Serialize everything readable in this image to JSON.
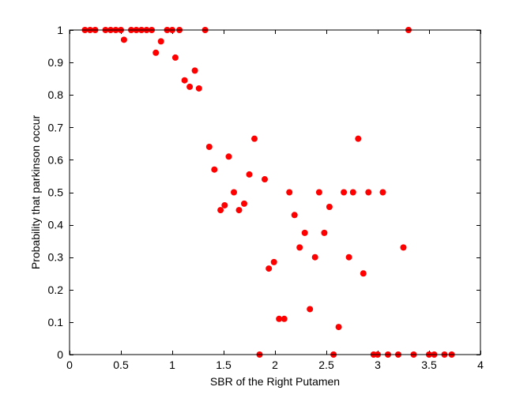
{
  "chart_data": {
    "type": "scatter",
    "xlabel": "SBR of the Right Putamen",
    "ylabel": "Probability that parkinson occur",
    "xlim": [
      0,
      4
    ],
    "ylim": [
      0,
      1
    ],
    "x_ticks": [
      0,
      0.5,
      1,
      1.5,
      2,
      2.5,
      3,
      3.5,
      4
    ],
    "x_tick_labels": [
      "0",
      "0.5",
      "1",
      "1.5",
      "2",
      "2.5",
      "3",
      "3.5",
      "4"
    ],
    "y_ticks": [
      0,
      0.1,
      0.2,
      0.3,
      0.4,
      0.5,
      0.6,
      0.7,
      0.8,
      0.9,
      1
    ],
    "y_tick_labels": [
      "0",
      "0.1",
      "0.2",
      "0.3",
      "0.4",
      "0.5",
      "0.6",
      "0.7",
      "0.8",
      "0.9",
      "1"
    ],
    "grid": false,
    "marker_color": "#ff0000",
    "points": [
      [
        0.15,
        1
      ],
      [
        0.2,
        1
      ],
      [
        0.25,
        1
      ],
      [
        0.35,
        1
      ],
      [
        0.4,
        1
      ],
      [
        0.45,
        1
      ],
      [
        0.5,
        1
      ],
      [
        0.6,
        1
      ],
      [
        0.65,
        1
      ],
      [
        0.7,
        1
      ],
      [
        0.75,
        1
      ],
      [
        0.8,
        1
      ],
      [
        0.95,
        1
      ],
      [
        1.0,
        1
      ],
      [
        1.07,
        1
      ],
      [
        1.32,
        1
      ],
      [
        3.3,
        1
      ],
      [
        0.53,
        0.97
      ],
      [
        0.89,
        0.965
      ],
      [
        0.84,
        0.93
      ],
      [
        1.03,
        0.915
      ],
      [
        1.12,
        0.845
      ],
      [
        1.22,
        0.875
      ],
      [
        1.17,
        0.825
      ],
      [
        1.26,
        0.82
      ],
      [
        1.36,
        0.64
      ],
      [
        1.41,
        0.57
      ],
      [
        1.47,
        0.445
      ],
      [
        1.51,
        0.46
      ],
      [
        1.55,
        0.61
      ],
      [
        1.6,
        0.5
      ],
      [
        1.65,
        0.445
      ],
      [
        1.7,
        0.465
      ],
      [
        1.75,
        0.555
      ],
      [
        1.8,
        0.665
      ],
      [
        1.85,
        0.0
      ],
      [
        1.9,
        0.54
      ],
      [
        1.94,
        0.265
      ],
      [
        1.99,
        0.285
      ],
      [
        2.04,
        0.11
      ],
      [
        2.09,
        0.11
      ],
      [
        2.14,
        0.5
      ],
      [
        2.19,
        0.43
      ],
      [
        2.24,
        0.33
      ],
      [
        2.29,
        0.375
      ],
      [
        2.34,
        0.14
      ],
      [
        2.39,
        0.3
      ],
      [
        2.43,
        0.5
      ],
      [
        2.48,
        0.375
      ],
      [
        2.53,
        0.455
      ],
      [
        2.57,
        0.0
      ],
      [
        2.62,
        0.085
      ],
      [
        2.67,
        0.5
      ],
      [
        2.72,
        0.3
      ],
      [
        2.76,
        0.5
      ],
      [
        2.81,
        0.665
      ],
      [
        2.86,
        0.25
      ],
      [
        2.91,
        0.5
      ],
      [
        2.96,
        0.0
      ],
      [
        3.0,
        0.0
      ],
      [
        3.05,
        0.5
      ],
      [
        3.1,
        0.0
      ],
      [
        3.2,
        0.0
      ],
      [
        3.25,
        0.33
      ],
      [
        3.35,
        0.0
      ],
      [
        3.5,
        0.0
      ],
      [
        3.55,
        0.0
      ],
      [
        3.65,
        0.0
      ],
      [
        3.72,
        0.0
      ]
    ]
  }
}
